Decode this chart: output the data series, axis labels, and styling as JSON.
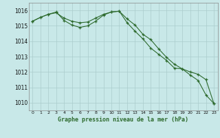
{
  "bg_color": "#c8e8e8",
  "grid_color": "#aacccc",
  "line_color": "#2d6a2d",
  "title": "Graphe pression niveau de la mer (hPa)",
  "line1": [
    1015.3,
    1015.6,
    1015.75,
    1015.85,
    1015.5,
    1015.3,
    1015.2,
    1015.25,
    1015.5,
    1015.75,
    1015.9,
    1015.9,
    1015.45,
    1015.05,
    1014.45,
    1014.1,
    1013.5,
    1012.95,
    1012.5,
    1012.2,
    1011.8,
    1011.45,
    1010.5,
    1009.95
  ],
  "line2": [
    1015.3,
    1015.6,
    1015.75,
    1015.9,
    1015.5,
    1015.2,
    1015.05,
    1015.15,
    1015.4,
    1015.75,
    1015.9,
    1015.9,
    1015.5,
    1015.0,
    1014.55,
    1013.65,
    1013.2,
    1012.8,
    1012.3,
    1012.2,
    1012.0,
    1011.85,
    1011.5,
    1009.95
  ],
  "ylim": [
    1009.5,
    1016.5
  ],
  "yticks": [
    1010,
    1011,
    1012,
    1013,
    1014,
    1015,
    1016
  ],
  "xticks": [
    0,
    1,
    2,
    3,
    4,
    5,
    6,
    7,
    8,
    9,
    10,
    11,
    12,
    13,
    14,
    15,
    16,
    17,
    18,
    19,
    20,
    21,
    22,
    23
  ],
  "figw": 3.2,
  "figh": 2.0,
  "dpi": 100
}
